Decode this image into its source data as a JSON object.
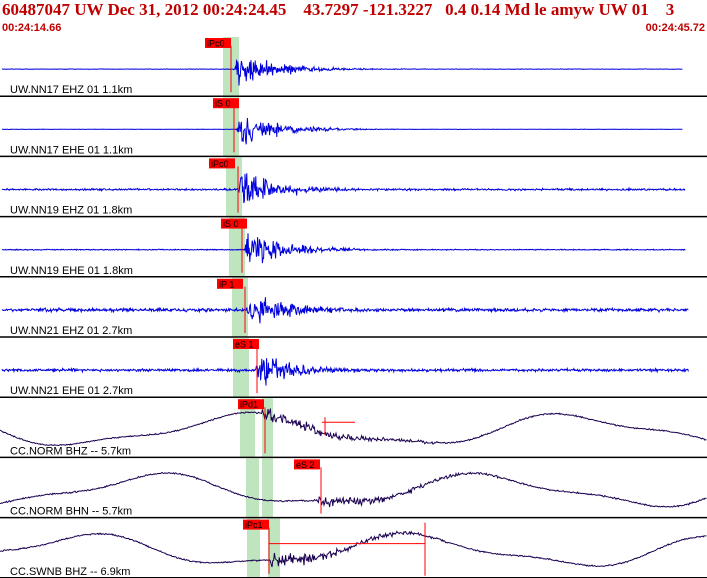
{
  "header": {
    "event_line": "60487047 UW Dec 31, 2012 00:24:24.45    43.7297 -121.3227   0.4 0.14 Md le amyw UW 01    3",
    "time_start": "00:24:14.66",
    "time_end": "00:24:45.72"
  },
  "colors": {
    "trace_short": "#0000dd",
    "trace_long": "#1a0050",
    "pick_box": "#ff0000",
    "pick_line": "#ff0000",
    "window": "#bfe5bf",
    "divider": "#000000",
    "header_text": "#c00000"
  },
  "channels": [
    {
      "label": "UW.NN17 EHZ 01 1.1km",
      "pick": "iPc0"
    },
    {
      "label": "UW.NN17 EHE 01 1.1km",
      "pick": "iS 0"
    },
    {
      "label": "UW.NN19 EHZ 01 1.8km",
      "pick": "iPc0"
    },
    {
      "label": "UW.NN19 EHE 01 1.8km",
      "pick": "iS 0"
    },
    {
      "label": "UW.NN21 EHZ 01 2.7km",
      "pick": "iP 1"
    },
    {
      "label": "UW.NN21 EHE 01 2.7km",
      "pick": "eS 1"
    },
    {
      "label": "CC.NORM BHZ -- 5.7km",
      "pick": "iPd1"
    },
    {
      "label": "CC.NORM BHN -- 5.7km",
      "pick": "eS 2"
    },
    {
      "label": "CC.SWNB BHZ -- 6.9km",
      "pick": "iPc1"
    }
  ]
}
